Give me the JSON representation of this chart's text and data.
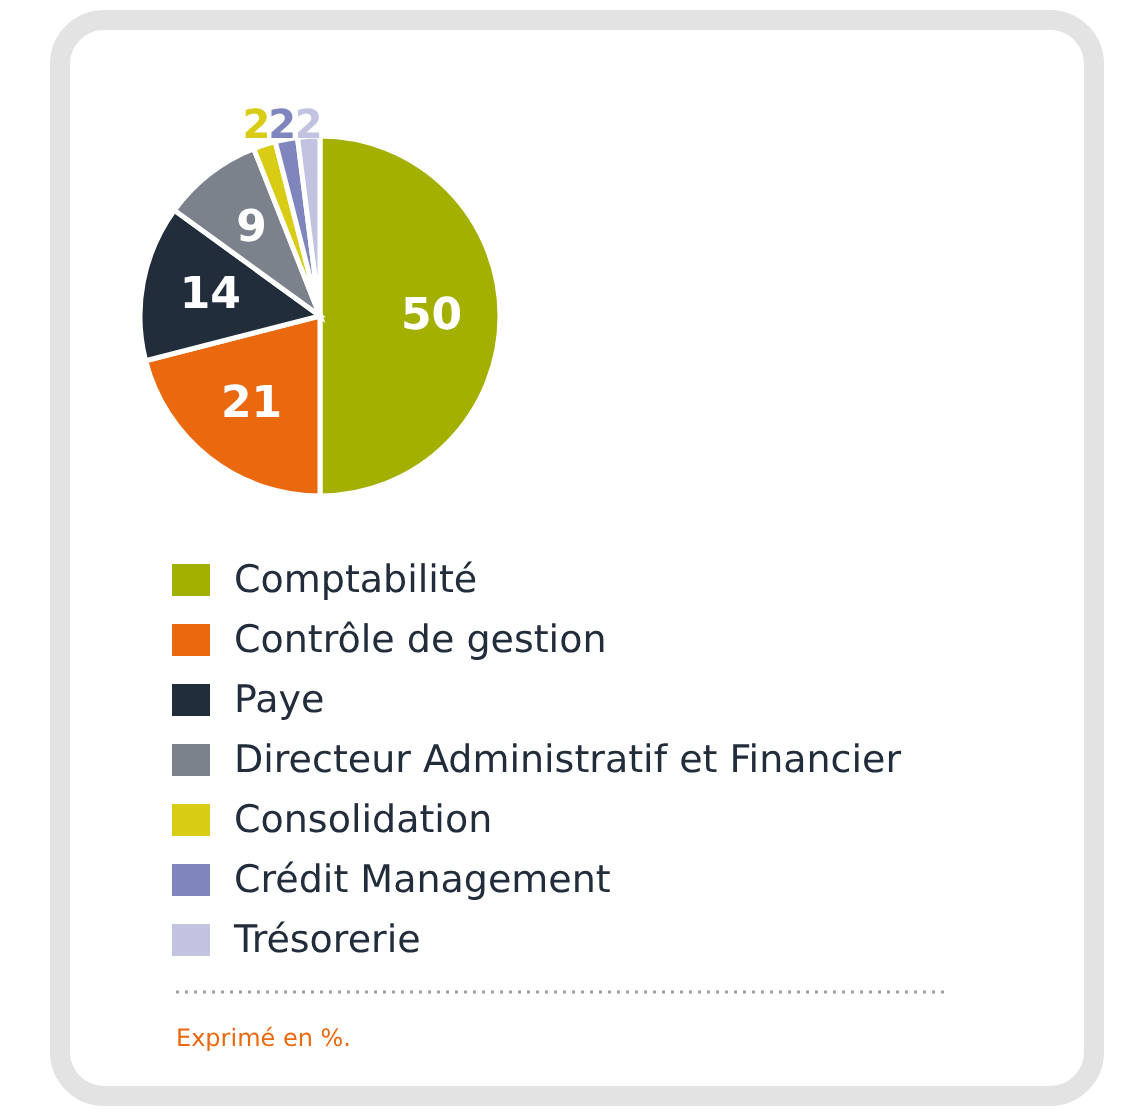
{
  "chart_data": {
    "type": "pie",
    "categories": [
      "Comptabilité",
      "Contrôle de gestion",
      "Paye",
      "Directeur Administratif et Financier",
      "Consolidation",
      "Crédit Management",
      "Trésorerie"
    ],
    "values": [
      50,
      21,
      14,
      9,
      2,
      2,
      2
    ],
    "colors": [
      "#a3b000",
      "#ea690f",
      "#222d3c",
      "#7b828b",
      "#d8cc14",
      "#7f86bd",
      "#c2c3e0"
    ],
    "data_labels": true,
    "legend": "bottom",
    "annotations": [
      "Exprimé en %."
    ]
  }
}
